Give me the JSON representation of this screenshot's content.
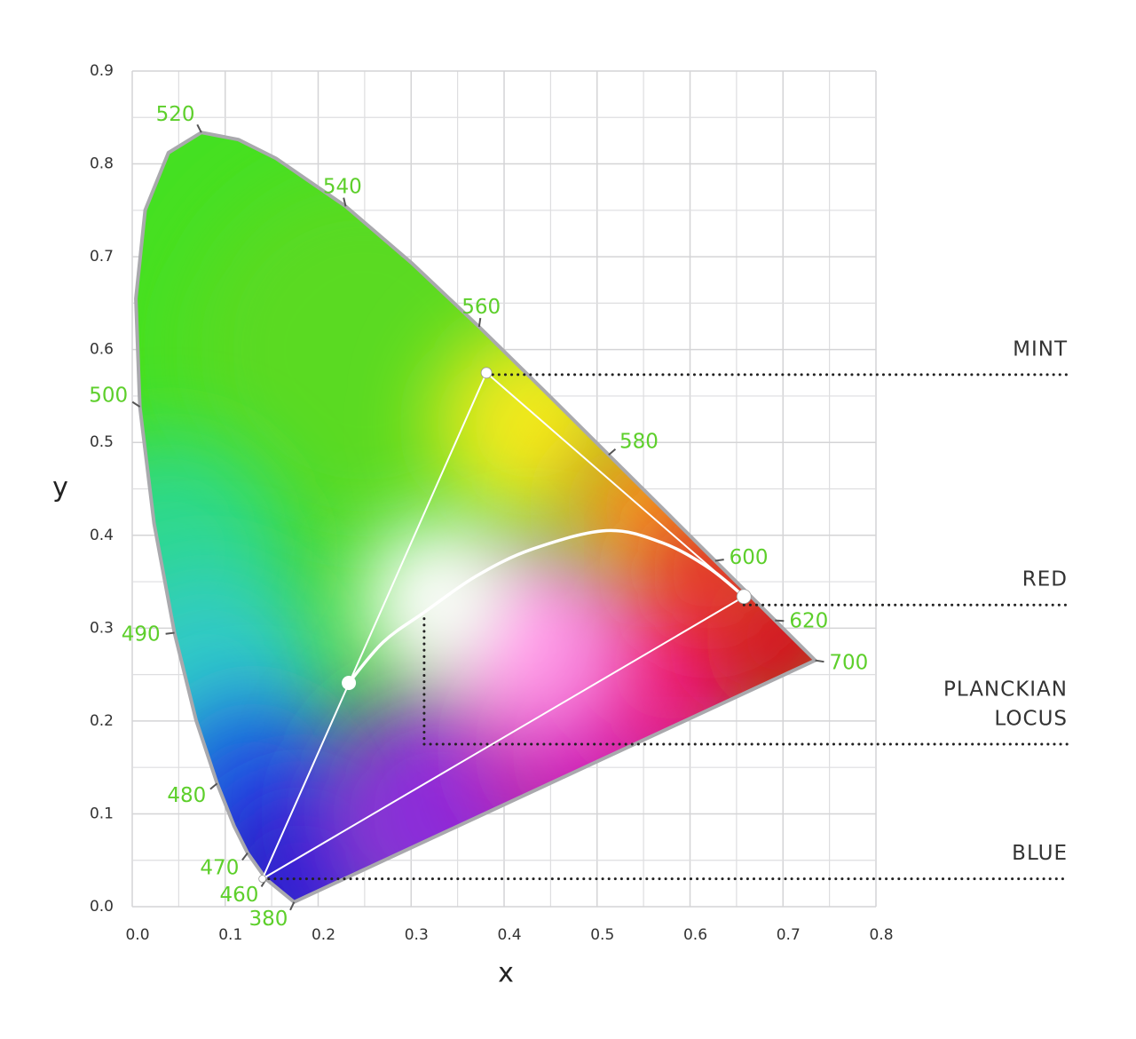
{
  "chart_data": {
    "type": "chromaticity",
    "xlabel": "x",
    "ylabel": "y",
    "xlim": [
      0,
      0.8
    ],
    "ylim": [
      0,
      0.9
    ],
    "xticks": [
      {
        "value": 0,
        "label": "0.0"
      },
      0.1,
      0.2,
      0.3,
      0.4,
      0.5,
      0.6,
      0.7,
      0.8
    ],
    "yticks": [
      {
        "value": 0,
        "label": "0.0"
      },
      0.1,
      0.2,
      0.3,
      0.4,
      0.5,
      0.6,
      0.7,
      0.8,
      0.9
    ],
    "grid": true,
    "locus": {
      "x": [
        0.1741,
        0.144,
        0.1241,
        0.1096,
        0.0913,
        0.0687,
        0.0454,
        0.0235,
        0.0082,
        0.0039,
        0.0139,
        0.0389,
        0.0743,
        0.1142,
        0.1547,
        0.2296,
        0.3016,
        0.3731,
        0.4441,
        0.5125,
        0.5752,
        0.627,
        0.6658,
        0.6915,
        0.719,
        0.7347
      ],
      "y": [
        0.005,
        0.0297,
        0.0578,
        0.0868,
        0.1327,
        0.2007,
        0.295,
        0.4127,
        0.5384,
        0.6548,
        0.7502,
        0.812,
        0.8338,
        0.8262,
        0.8059,
        0.7543,
        0.6923,
        0.6245,
        0.5547,
        0.4866,
        0.4242,
        0.3725,
        0.334,
        0.3083,
        0.2809,
        0.2653
      ],
      "color": "#a9a9ad"
    },
    "wavelength_labels": {
      "wavelengths": [
        520,
        540,
        560,
        580,
        600,
        620,
        700,
        500,
        490,
        480,
        470,
        460,
        380
      ],
      "x": [
        0.0743,
        0.2296,
        0.3731,
        0.5125,
        0.627,
        0.6915,
        0.7347,
        0.0082,
        0.0454,
        0.0913,
        0.1241,
        0.144,
        0.1741
      ],
      "y": [
        0.8338,
        0.7543,
        0.6245,
        0.4866,
        0.3725,
        0.3083,
        0.2653,
        0.5384,
        0.295,
        0.1327,
        0.0578,
        0.0297,
        0.005
      ],
      "color": "#5dcf2b"
    },
    "gamut": {
      "x": [
        0.14,
        0.381,
        0.658
      ],
      "y": [
        0.03,
        0.575,
        0.334
      ],
      "color": "#ffffff"
    },
    "white_point": {
      "x": 0.233,
      "y": 0.241
    },
    "planckian_locus": {
      "x": [
        0.233,
        0.27,
        0.314,
        0.37,
        0.43,
        0.51,
        0.57,
        0.62,
        0.658
      ],
      "y": [
        0.241,
        0.285,
        0.317,
        0.356,
        0.385,
        0.405,
        0.392,
        0.365,
        0.334
      ]
    },
    "callouts": [
      {
        "label": [
          "MINT"
        ],
        "x": 0.381,
        "y": 0.573
      },
      {
        "label": [
          "RED"
        ],
        "x": 0.658,
        "y": 0.325
      },
      {
        "label": [
          "PLANCKIAN",
          "LOCUS"
        ],
        "x": 0.314,
        "y": 0.175
      },
      {
        "label": [
          "BLUE"
        ],
        "x": 0.14,
        "y": 0.03
      }
    ]
  }
}
